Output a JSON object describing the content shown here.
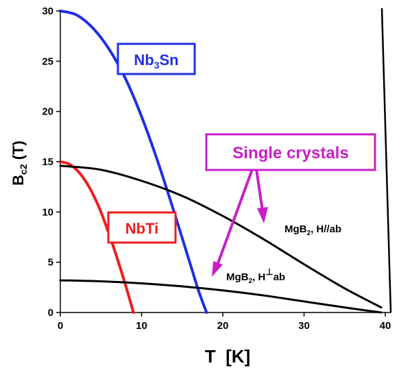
{
  "chart_data": {
    "type": "line",
    "xlabel": "T  [K]",
    "ylabel_main": "B",
    "ylabel_sub": "c2",
    "ylabel_unit": " (T)",
    "xlim": [
      0,
      40
    ],
    "ylim": [
      0,
      30
    ],
    "xticks": [
      0,
      10,
      20,
      30,
      40
    ],
    "yticks": [
      0,
      5,
      10,
      15,
      20,
      25,
      30
    ],
    "grid": false,
    "series": [
      {
        "name": "Nb3Sn",
        "color": "#1f2fe6",
        "x": [
          0,
          2,
          4,
          6,
          8,
          10,
          12,
          14,
          16,
          17,
          18
        ],
        "y": [
          30,
          29.6,
          28.3,
          26.2,
          23.3,
          19.5,
          15.0,
          10.0,
          4.8,
          2.2,
          0
        ]
      },
      {
        "name": "NbTi",
        "color": "#f01c1c",
        "x": [
          0,
          1,
          2,
          3,
          4,
          5,
          6,
          7,
          8,
          9
        ],
        "y": [
          15,
          14.8,
          14.2,
          13.2,
          11.8,
          10.0,
          7.8,
          5.4,
          2.8,
          0
        ]
      },
      {
        "name": "MgB2, H//ab",
        "color": "#000000",
        "x": [
          0,
          5,
          10,
          15,
          20,
          25,
          30,
          35,
          39.5
        ],
        "y": [
          14.6,
          14.2,
          13.1,
          11.6,
          9.6,
          7.3,
          4.8,
          2.4,
          0.5
        ]
      },
      {
        "name": "MgB2, H⊥ab",
        "color": "#000000",
        "x": [
          0,
          5,
          10,
          15,
          20,
          25,
          30,
          35,
          39.5
        ],
        "y": [
          3.2,
          3.1,
          2.9,
          2.6,
          2.2,
          1.7,
          1.1,
          0.5,
          0
        ]
      }
    ],
    "labels": {
      "nb3sn": {
        "base": "Nb",
        "sub": "3",
        "rest": "Sn",
        "color": "#1f2fe6"
      },
      "nbti": {
        "text": "NbTi",
        "color": "#f01c1c"
      },
      "single_crystals": {
        "text": "Single crystals",
        "color": "#c81ec8"
      },
      "mgb2_par": {
        "base": "MgB",
        "sub": "2",
        "rest": ", H//ab"
      },
      "mgb2_perp": {
        "base": "MgB",
        "sub": "2",
        "rest_a": ", H",
        "sup": "⊥",
        "rest_b": "ab"
      }
    }
  }
}
